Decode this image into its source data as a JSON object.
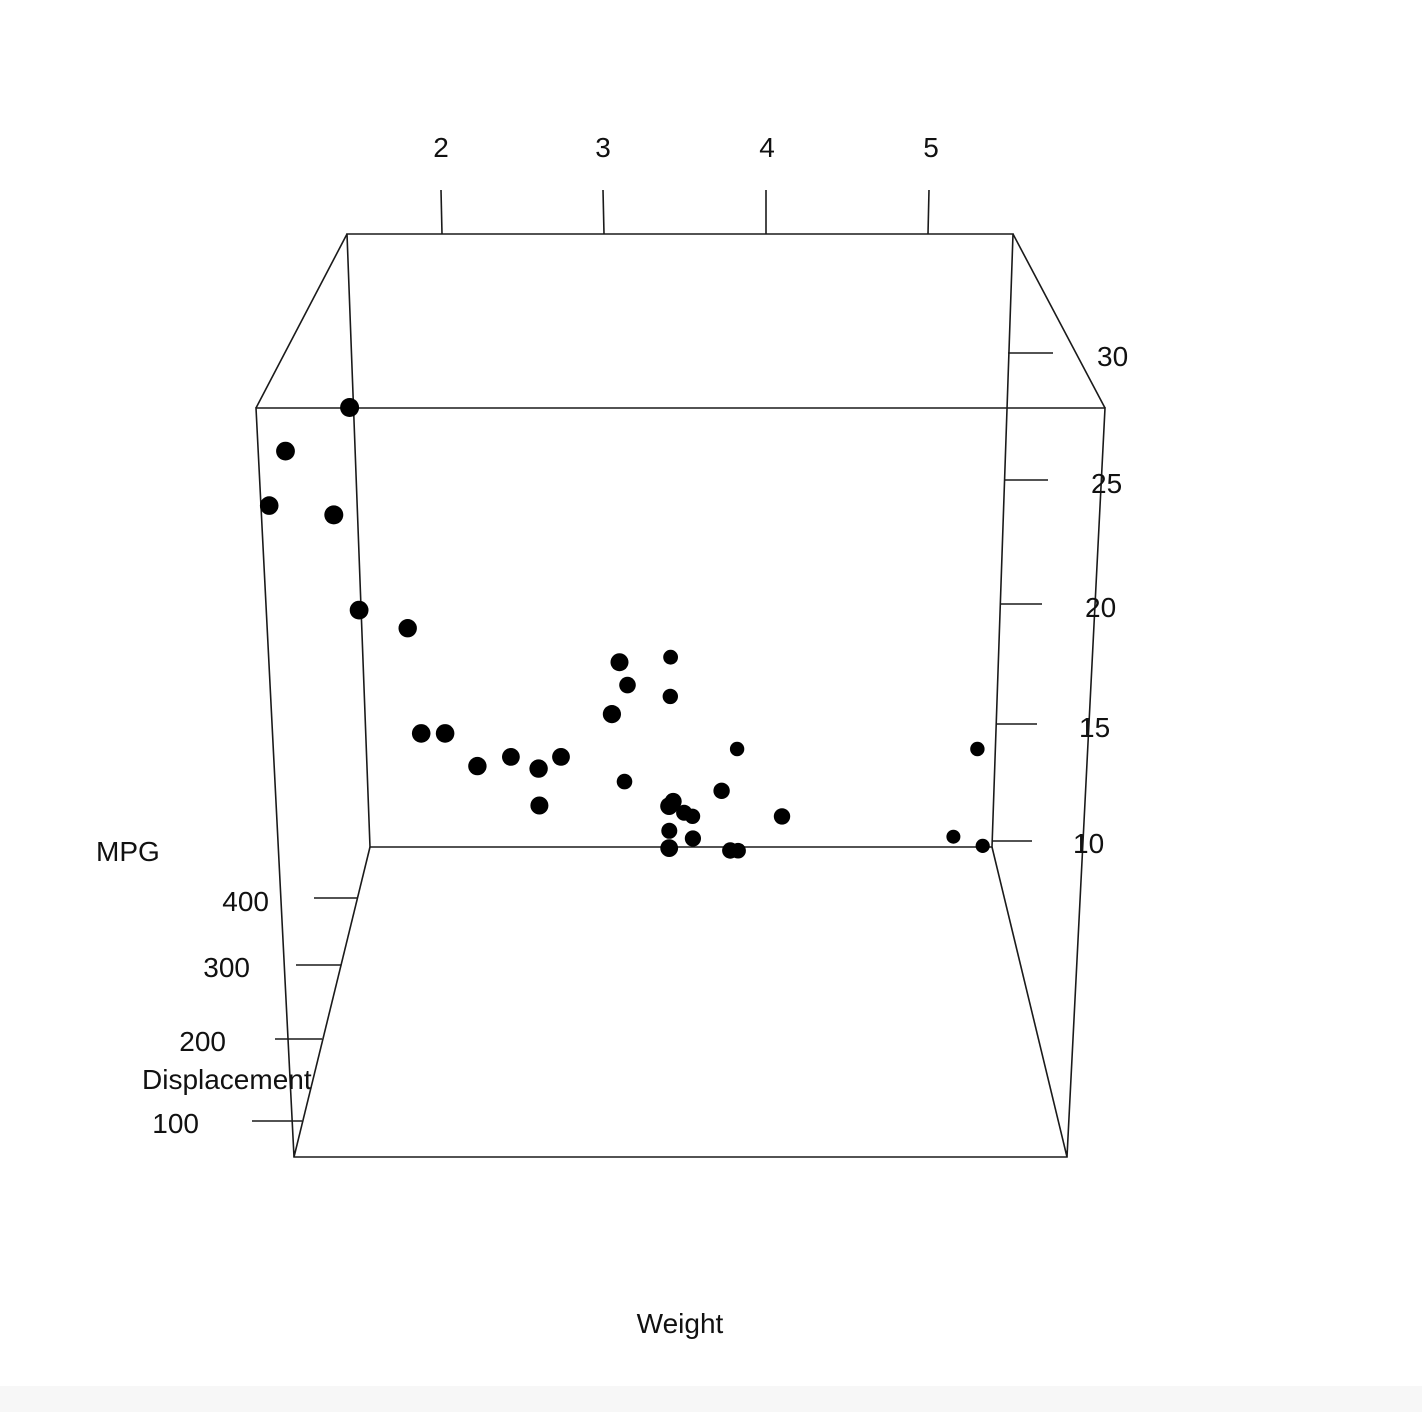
{
  "chart_data": {
    "type": "scatter",
    "projection": "3d",
    "xlabel": "Weight",
    "ylabel": "Displacement",
    "zlabel": "MPG",
    "x_ticks": [
      "2",
      "3",
      "4",
      "5"
    ],
    "y_ticks": [
      "100",
      "200",
      "300",
      "400"
    ],
    "z_ticks": [
      "10",
      "15",
      "20",
      "25",
      "30"
    ],
    "xlim": [
      1.5,
      5.5
    ],
    "ylim": [
      70,
      472
    ],
    "zlim": [
      10,
      33.9
    ],
    "grid": false,
    "legend": "none",
    "point_color": "#000000",
    "points": [
      {
        "weight": 1.84,
        "displacement": 75.7,
        "mpg": 30.4
      },
      {
        "weight": 1.94,
        "displacement": 71.1,
        "mpg": 33.9
      },
      {
        "weight": 1.51,
        "displacement": 95.1,
        "mpg": 30.4
      },
      {
        "weight": 1.62,
        "displacement": 78.7,
        "mpg": 32.4
      },
      {
        "weight": 2.14,
        "displacement": 120.3,
        "mpg": 26.0
      },
      {
        "weight": 1.94,
        "displacement": 79.0,
        "mpg": 27.3
      },
      {
        "weight": 2.2,
        "displacement": 108.0,
        "mpg": 22.8
      },
      {
        "weight": 2.32,
        "displacement": 108.0,
        "mpg": 22.8
      },
      {
        "weight": 2.47,
        "displacement": 120.1,
        "mpg": 21.5
      },
      {
        "weight": 2.78,
        "displacement": 121.0,
        "mpg": 21.4
      },
      {
        "weight": 2.62,
        "displacement": 160.0,
        "mpg": 21.0
      },
      {
        "weight": 2.88,
        "displacement": 160.0,
        "mpg": 21.0
      },
      {
        "weight": 2.77,
        "displacement": 145.0,
        "mpg": 19.7
      },
      {
        "weight": 3.19,
        "displacement": 146.7,
        "mpg": 24.4
      },
      {
        "weight": 3.15,
        "displacement": 140.8,
        "mpg": 22.8
      },
      {
        "weight": 3.21,
        "displacement": 258.0,
        "mpg": 21.4
      },
      {
        "weight": 3.44,
        "displacement": 167.6,
        "mpg": 19.2
      },
      {
        "weight": 3.44,
        "displacement": 167.6,
        "mpg": 17.8
      },
      {
        "weight": 3.46,
        "displacement": 225.0,
        "mpg": 18.1
      },
      {
        "weight": 3.17,
        "displacement": 351.0,
        "mpg": 15.8
      },
      {
        "weight": 3.44,
        "displacement": 360.0,
        "mpg": 18.7
      },
      {
        "weight": 3.44,
        "displacement": 400.0,
        "mpg": 19.2
      },
      {
        "weight": 3.52,
        "displacement": 318.0,
        "mpg": 15.5
      },
      {
        "weight": 3.57,
        "displacement": 360.0,
        "mpg": 14.3
      },
      {
        "weight": 3.435,
        "displacement": 304.0,
        "mpg": 15.2
      },
      {
        "weight": 3.57,
        "displacement": 301.0,
        "mpg": 15.0
      },
      {
        "weight": 3.73,
        "displacement": 275.8,
        "mpg": 17.3
      },
      {
        "weight": 3.78,
        "displacement": 275.8,
        "mpg": 15.2
      },
      {
        "weight": 3.84,
        "displacement": 350.0,
        "mpg": 13.3
      },
      {
        "weight": 3.85,
        "displacement": 440.0,
        "mpg": 14.7
      },
      {
        "weight": 4.07,
        "displacement": 275.8,
        "mpg": 16.4
      },
      {
        "weight": 5.25,
        "displacement": 472.0,
        "mpg": 10.4
      },
      {
        "weight": 5.345,
        "displacement": 440.0,
        "mpg": 14.7
      },
      {
        "weight": 5.424,
        "displacement": 460.0,
        "mpg": 10.4
      }
    ]
  }
}
